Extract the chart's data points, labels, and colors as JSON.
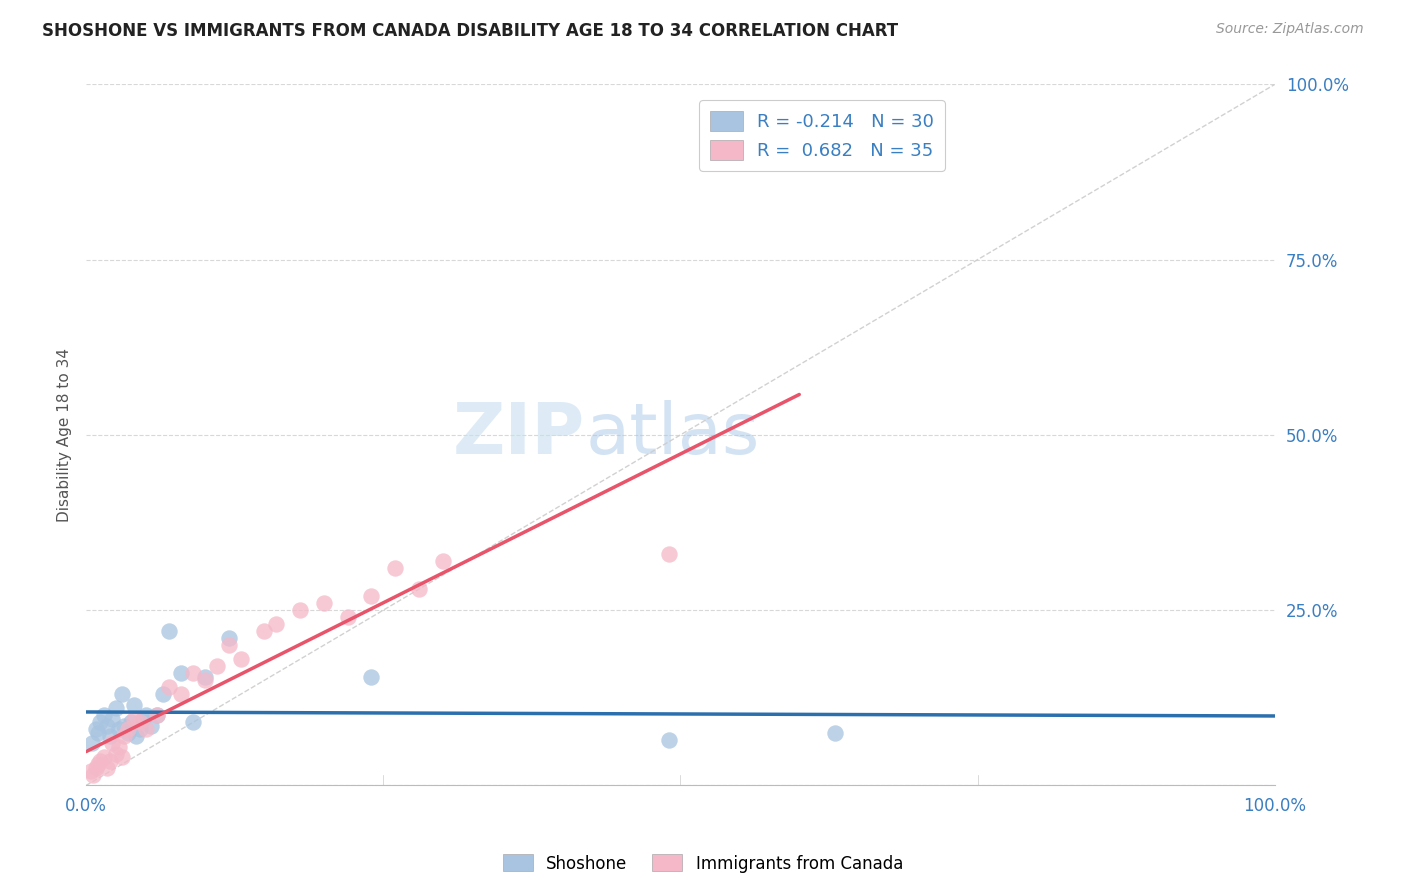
{
  "title": "SHOSHONE VS IMMIGRANTS FROM CANADA DISABILITY AGE 18 TO 34 CORRELATION CHART",
  "source": "Source: ZipAtlas.com",
  "ylabel": "Disability Age 18 to 34",
  "xlim": [
    0.0,
    1.0
  ],
  "ylim": [
    0.0,
    1.0
  ],
  "grid_color": "#d8d8d8",
  "shoshone_color": "#a8c4e0",
  "shoshone_edge": "#7aaed0",
  "canada_color": "#f4b8c8",
  "canada_edge": "#e890a8",
  "trend_shoshone_color": "#2c6fad",
  "trend_canada_color": "#e8546a",
  "diagonal_color": "#cccccc",
  "r_shoshone": -0.214,
  "n_shoshone": 30,
  "r_canada": 0.682,
  "n_canada": 35,
  "shoshone_x": [
    0.005,
    0.008,
    0.01,
    0.012,
    0.015,
    0.018,
    0.02,
    0.022,
    0.025,
    0.028,
    0.03,
    0.032,
    0.035,
    0.038,
    0.04,
    0.042,
    0.045,
    0.048,
    0.05,
    0.055,
    0.06,
    0.065,
    0.07,
    0.08,
    0.09,
    0.1,
    0.12,
    0.24,
    0.49,
    0.63
  ],
  "shoshone_y": [
    0.06,
    0.08,
    0.075,
    0.09,
    0.1,
    0.085,
    0.07,
    0.095,
    0.11,
    0.08,
    0.13,
    0.085,
    0.075,
    0.09,
    0.115,
    0.07,
    0.08,
    0.095,
    0.1,
    0.085,
    0.1,
    0.13,
    0.22,
    0.16,
    0.09,
    0.155,
    0.21,
    0.155,
    0.065,
    0.075
  ],
  "canada_x": [
    0.004,
    0.006,
    0.008,
    0.01,
    0.012,
    0.015,
    0.018,
    0.02,
    0.022,
    0.025,
    0.028,
    0.03,
    0.032,
    0.035,
    0.04,
    0.045,
    0.05,
    0.06,
    0.07,
    0.08,
    0.09,
    0.1,
    0.11,
    0.12,
    0.13,
    0.15,
    0.16,
    0.18,
    0.2,
    0.22,
    0.24,
    0.26,
    0.28,
    0.3,
    0.49
  ],
  "canada_y": [
    0.02,
    0.015,
    0.025,
    0.03,
    0.035,
    0.04,
    0.025,
    0.035,
    0.06,
    0.045,
    0.055,
    0.04,
    0.07,
    0.08,
    0.095,
    0.09,
    0.08,
    0.1,
    0.14,
    0.13,
    0.16,
    0.15,
    0.17,
    0.2,
    0.18,
    0.22,
    0.23,
    0.25,
    0.26,
    0.24,
    0.27,
    0.31,
    0.28,
    0.32,
    0.33
  ]
}
